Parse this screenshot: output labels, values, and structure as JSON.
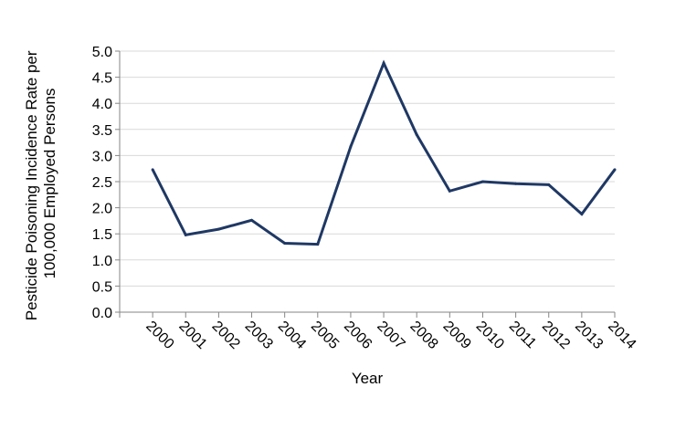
{
  "chart_data": {
    "type": "line",
    "title": "",
    "xlabel": "Year",
    "ylabel": "Pesticide Poisoning Incidence Rate per 100,000 Employed Persons",
    "ylabel_lines": [
      "Pesticide Poisoning Incidence Rate per",
      "100,000 Employed Persons"
    ],
    "categories": [
      "2000",
      "2001",
      "2002",
      "2003",
      "2004",
      "2005",
      "2006",
      "2007",
      "2008",
      "2009",
      "2010",
      "2011",
      "2012",
      "2013",
      "2014"
    ],
    "series": [
      {
        "values": [
          2.73,
          1.48,
          1.59,
          1.76,
          1.32,
          1.3,
          3.17,
          4.77,
          3.4,
          2.32,
          2.5,
          2.46,
          2.44,
          1.88,
          2.73
        ],
        "color": "#1f3864"
      }
    ],
    "ylim": [
      0,
      5
    ],
    "yticks": [
      "0.0",
      "0.5",
      "1.0",
      "1.5",
      "2.0",
      "2.5",
      "3.0",
      "3.5",
      "4.0",
      "4.5",
      "5.0"
    ],
    "grid": true,
    "legend": "none"
  }
}
